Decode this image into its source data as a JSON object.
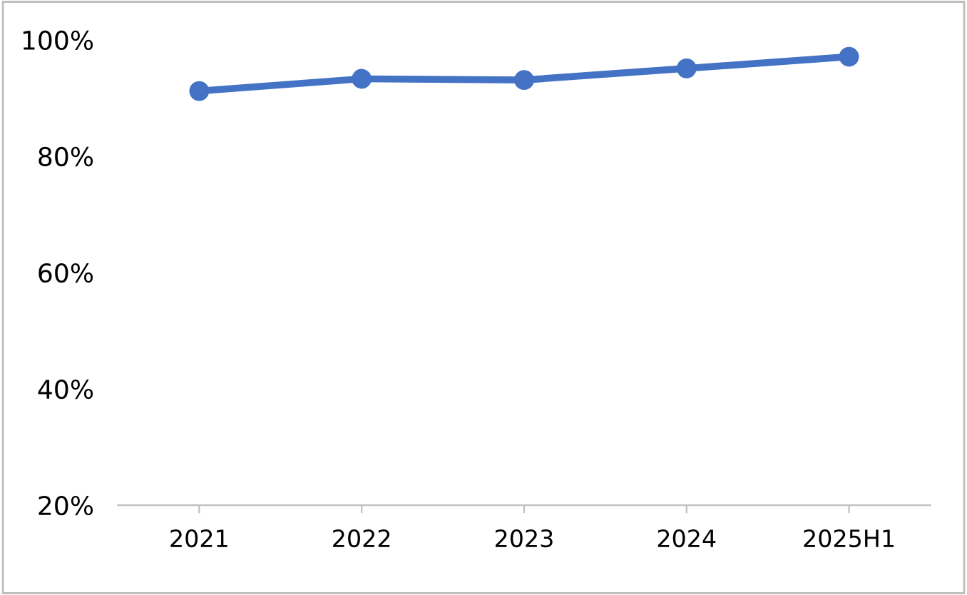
{
  "chart_data": {
    "type": "line",
    "categories": [
      "2021",
      "2022",
      "2023",
      "2024",
      "2025H1"
    ],
    "series": [
      {
        "color": "#4472c4",
        "values": [
          91.2,
          93.3,
          93.1,
          95.1,
          97.1
        ]
      }
    ],
    "ylim": [
      20,
      100
    ],
    "yticks": [
      {
        "value": 20,
        "label": "20%"
      },
      {
        "value": 40,
        "label": "40%"
      },
      {
        "value": 60,
        "label": "60%"
      },
      {
        "value": 80,
        "label": "80%"
      },
      {
        "value": 100,
        "label": "100%"
      }
    ],
    "grid": false,
    "legend": false,
    "marker": "circle",
    "line_style": "solid"
  }
}
